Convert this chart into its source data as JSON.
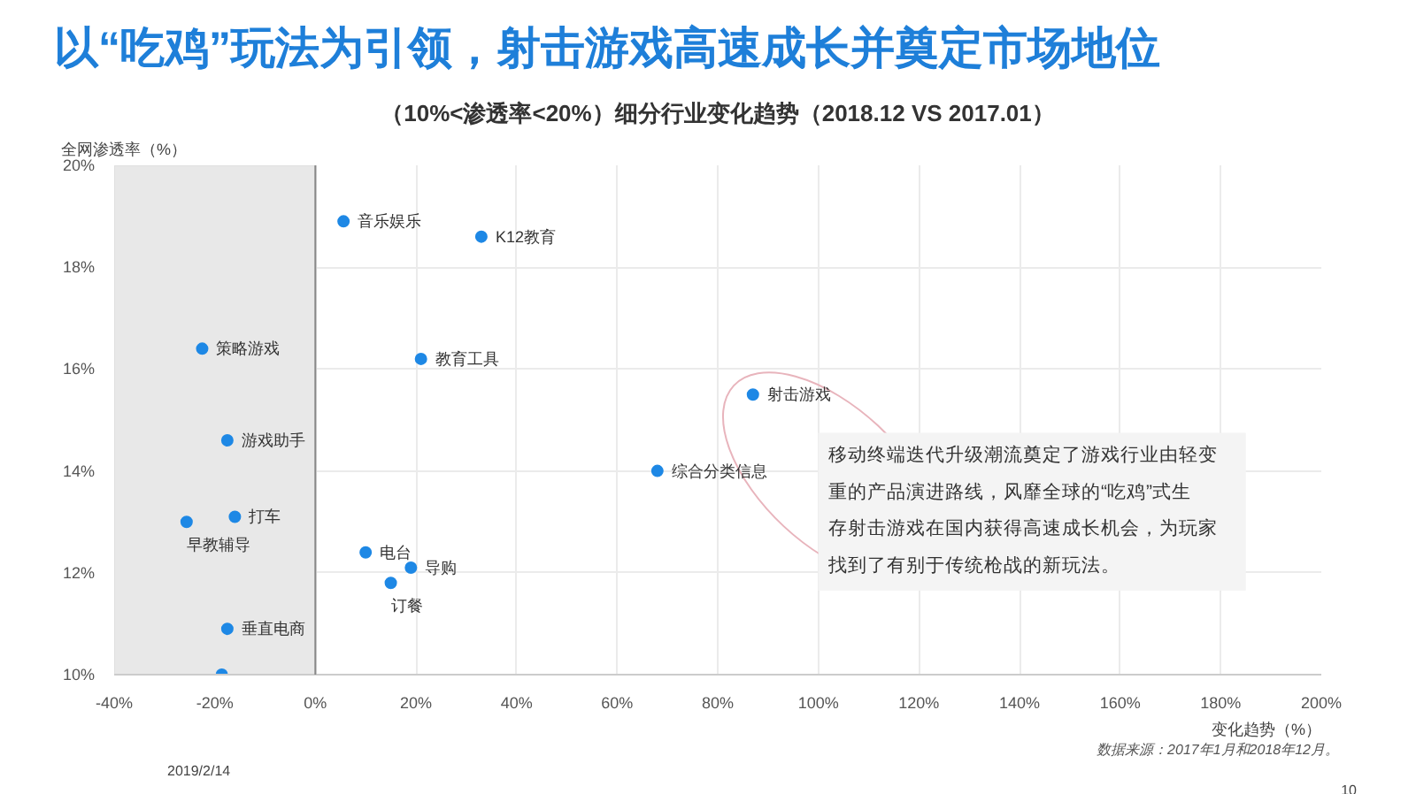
{
  "chart_data": {
    "type": "scatter",
    "title": "以“吃鸡”玩法为引领，射击游戏高速成长并奠定市场地位",
    "subtitle": "（10%<渗透率<20%）细分行业变化趋势（2018.12 VS 2017.01）",
    "xlabel": "变化趋势（%）",
    "ylabel": "全网渗透率（%）",
    "x": [
      5.6,
      33,
      21,
      87,
      68,
      10,
      19,
      15,
      -22.5,
      -17.5,
      -16,
      -25.6,
      -17.5,
      -18.6
    ],
    "values": [
      18.9,
      18.6,
      16.2,
      15.5,
      14.0,
      12.4,
      12.1,
      11.8,
      16.4,
      14.6,
      13.1,
      13.0,
      10.9,
      10.0
    ],
    "color": "#1e88e5",
    "marker": "circle",
    "grid": true,
    "xlim": [
      -40,
      200
    ],
    "xticks": [
      {
        "value": -40,
        "label": "-40%"
      },
      {
        "value": -20,
        "label": "-20%"
      },
      {
        "value": 0,
        "label": "0%"
      },
      {
        "value": 20,
        "label": "20%"
      },
      {
        "value": 40,
        "label": "40%"
      },
      {
        "value": 60,
        "label": "60%"
      },
      {
        "value": 80,
        "label": "80%"
      },
      {
        "value": 100,
        "label": "100%"
      },
      {
        "value": 120,
        "label": "120%"
      },
      {
        "value": 140,
        "label": "140%"
      },
      {
        "value": 160,
        "label": "160%"
      },
      {
        "value": 180,
        "label": "180%"
      },
      {
        "value": 200,
        "label": "200%"
      }
    ],
    "ylim": [
      10,
      20
    ],
    "yticks": [
      {
        "value": 10,
        "label": "10%"
      },
      {
        "value": 12,
        "label": "12%"
      },
      {
        "value": 14,
        "label": "14%"
      },
      {
        "value": 16,
        "label": "16%"
      },
      {
        "value": 18,
        "label": "18%"
      },
      {
        "value": 20,
        "label": "20%"
      }
    ],
    "bands": [
      {
        "axis": "x",
        "from": -40,
        "to": 0,
        "color": "#e8e8e8"
      }
    ],
    "ref_lines": [
      {
        "axis": "x",
        "value": 0,
        "color": "#888888"
      }
    ],
    "annotations": [
      {
        "text": "音乐娱乐",
        "x": 5.6,
        "y": 18.9
      },
      {
        "text": "K12教育",
        "x": 33,
        "y": 18.6
      },
      {
        "text": "教育工具",
        "x": 21,
        "y": 16.2
      },
      {
        "text": "射击游戏",
        "x": 87,
        "y": 15.5
      },
      {
        "text": "综合分类信息",
        "x": 68,
        "y": 14.0
      },
      {
        "text": "电台",
        "x": 10,
        "y": 12.4
      },
      {
        "text": "导购",
        "x": 19,
        "y": 12.1
      },
      {
        "text": "订餐",
        "x": 15,
        "y": 11.8
      },
      {
        "text": "策略游戏",
        "x": -22.5,
        "y": 16.4
      },
      {
        "text": "游戏助手",
        "x": -17.5,
        "y": 14.6
      },
      {
        "text": "打车",
        "x": -16,
        "y": 13.1
      },
      {
        "text": "早教辅导",
        "x": -25.6,
        "y": 13.0
      },
      {
        "text": "垂直电商",
        "x": -17.5,
        "y": 10.9
      },
      "移动终端迭代升级潮流奠定了游戏行业由轻变重的产品演进路线，风靡全球的“吃鸡”式生存射击游戏在国内获得高速成长机会，为玩家找到了有别于传统枪战的新玩法。",
      "数据来源：2017年1月和2018年12月。",
      "2019/2/14",
      "10"
    ]
  }
}
